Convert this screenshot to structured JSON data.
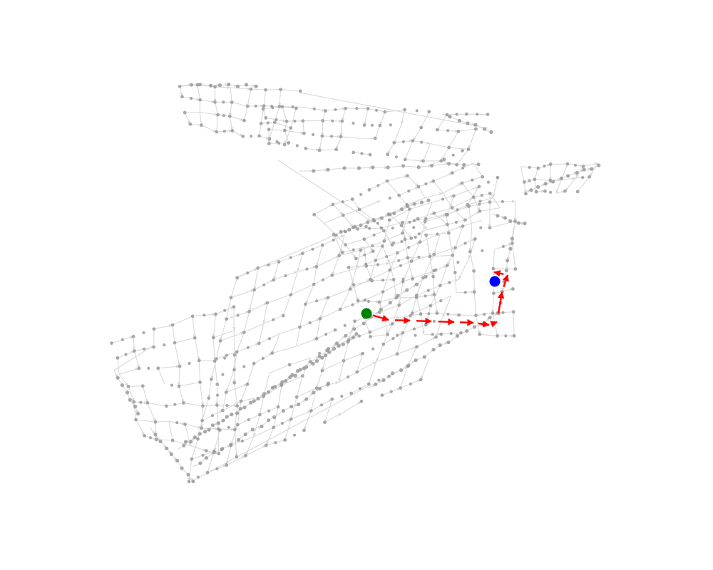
{
  "map": {
    "type": "street-network-route",
    "colors": {
      "background": "#ffffff",
      "street_edge": "#d9d9d9",
      "street_node": "#9a9a9a",
      "route": "#ff0000",
      "origin_marker": "#008000",
      "destination_marker": "#0000ff"
    },
    "origin": {
      "label": "",
      "marker": "green-dot"
    },
    "destination": {
      "label": "",
      "marker": "blue-dot"
    },
    "route": {
      "segments": 9,
      "style": "red-arrows"
    }
  }
}
